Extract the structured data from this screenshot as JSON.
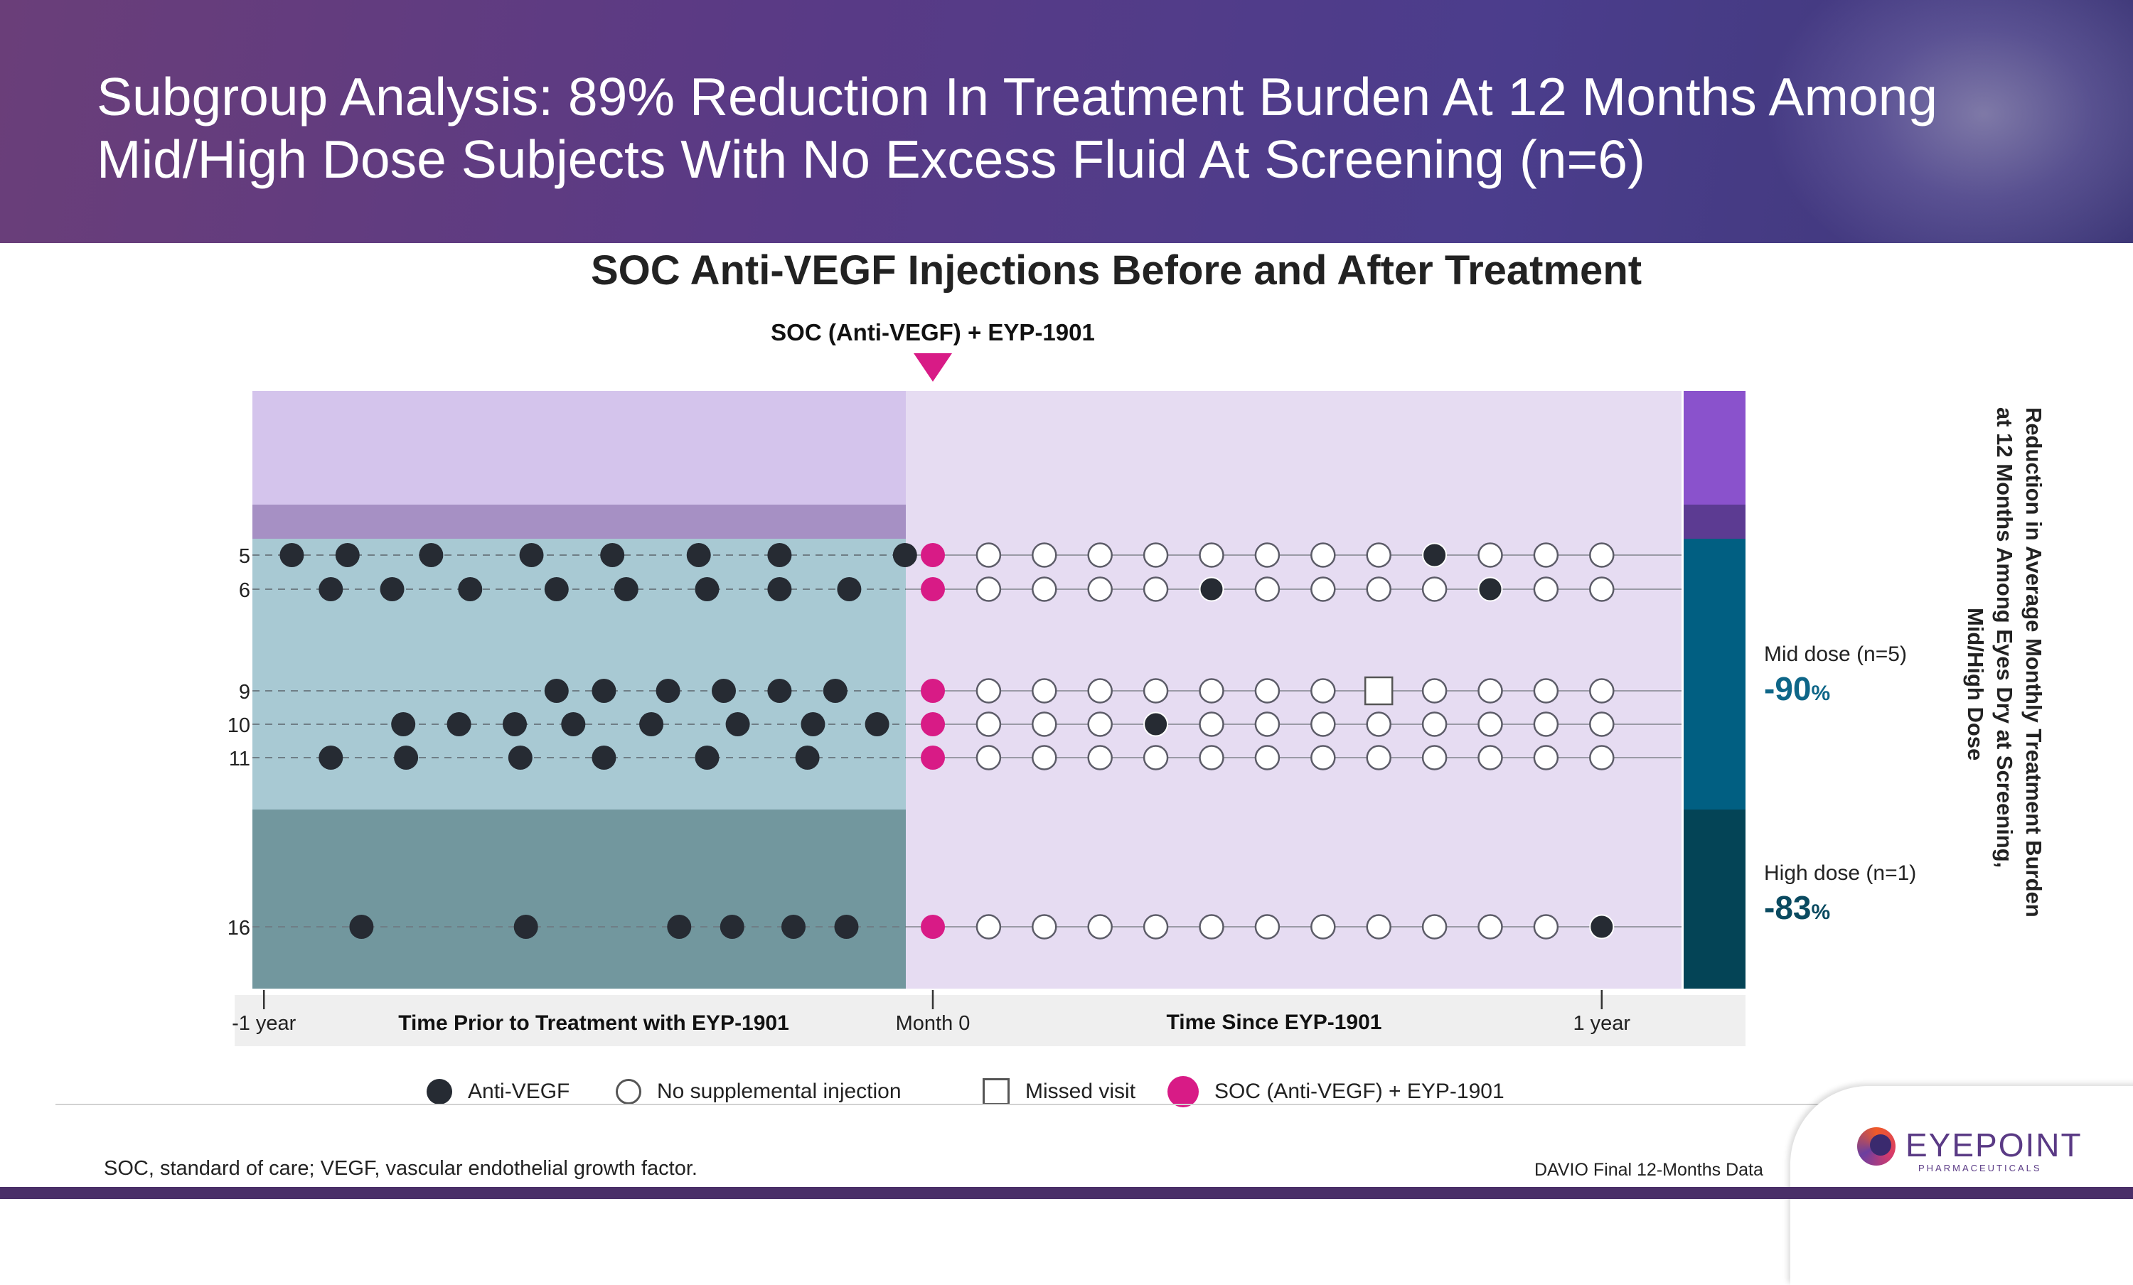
{
  "header": {
    "title": "Subgroup Analysis: 89% Reduction In Treatment Burden At 12 Months Among Mid/High Dose Subjects With No Excess Fluid At Screening (n=6)"
  },
  "chart_data": {
    "type": "scatter",
    "title": "SOC Anti-VEGF Injections Before and After Treatment",
    "marker_label": "SOC (Anti-VEGF) + EYP-1901",
    "x_unit": "months relative to EYP-1901 treatment",
    "xlim": [
      -12.5,
      13.5
    ],
    "x_ticks": [
      {
        "label": "-1 year",
        "value": -12
      },
      {
        "label": "Month 0",
        "value": 0
      },
      {
        "label": "1 year",
        "value": 12
      }
    ],
    "x_sections": {
      "before": "Time Prior to Treatment with EYP-1901",
      "after": "Time Since EYP-1901"
    },
    "subjects": [
      {
        "id": "5",
        "group": "Mid dose",
        "pre_injections": [
          -11.5,
          -10.5,
          -9.0,
          -7.2,
          -5.75,
          -4.2,
          -2.75,
          -0.5
        ],
        "post_visits": [
          "N",
          "N",
          "N",
          "N",
          "N",
          "N",
          "N",
          "N",
          "A",
          "N",
          "N",
          "N"
        ]
      },
      {
        "id": "6",
        "group": "Mid dose",
        "pre_injections": [
          -10.8,
          -9.7,
          -8.3,
          -6.75,
          -5.5,
          -4.05,
          -2.75,
          -1.5
        ],
        "post_visits": [
          "N",
          "N",
          "N",
          "N",
          "A",
          "N",
          "N",
          "N",
          "N",
          "A",
          "N",
          "N"
        ]
      },
      {
        "id": "9",
        "group": "Mid dose",
        "pre_injections": [
          -6.75,
          -5.9,
          -4.75,
          -3.75,
          -2.75,
          -1.75
        ],
        "post_visits": [
          "N",
          "N",
          "N",
          "N",
          "N",
          "N",
          "N",
          "M",
          "N",
          "N",
          "N",
          "N"
        ]
      },
      {
        "id": "10",
        "group": "Mid dose",
        "pre_injections": [
          -9.5,
          -8.5,
          -7.5,
          -6.45,
          -5.05,
          -3.5,
          -2.15,
          -1.0
        ],
        "post_visits": [
          "N",
          "N",
          "N",
          "A",
          "N",
          "N",
          "N",
          "N",
          "N",
          "N",
          "N",
          "N"
        ]
      },
      {
        "id": "11",
        "group": "Mid dose",
        "pre_injections": [
          -10.8,
          -9.45,
          -7.4,
          -5.9,
          -4.05,
          -2.25
        ],
        "post_visits": [
          "N",
          "N",
          "N",
          "N",
          "N",
          "N",
          "N",
          "N",
          "N",
          "N",
          "N",
          "N"
        ]
      },
      {
        "id": "16",
        "group": "High dose",
        "pre_injections": [
          -10.25,
          -7.3,
          -4.55,
          -3.6,
          -2.5,
          -1.55
        ],
        "post_visits": [
          "N",
          "N",
          "N",
          "N",
          "N",
          "N",
          "N",
          "N",
          "N",
          "N",
          "N",
          "A"
        ]
      }
    ],
    "visit_codes": {
      "A": "Anti-VEGF",
      "N": "No supplemental injection",
      "M": "Missed visit"
    },
    "groups": [
      {
        "name": "Mid dose (n=5)",
        "value": "-90",
        "unit": "%"
      },
      {
        "name": "High dose (n=1)",
        "value": "-83",
        "unit": "%"
      }
    ],
    "side_label": "Reduction in Average Monthly Treatment Burden at 12 Months Among Eyes Dry at Screening, Mid/High Dose",
    "legend": [
      "Anti-VEGF",
      "No supplemental injection",
      "Missed visit",
      "SOC (Anti-VEGF) + EYP-1901"
    ],
    "colors": {
      "anti_vegf": "#262b33",
      "soc_marker": "#d81b86",
      "mid_band": "#a8c9d3",
      "high_band": "#72979e",
      "pre_top": "#d4c4ec",
      "post_bg": "#e6dcf2",
      "purple_strip": "#a690c4",
      "bar_top": "#8a52cc",
      "bar_strip": "#5c3b92",
      "bar_mid": "#015f82",
      "bar_high": "#044456",
      "mid_text": "#0e6688",
      "high_text": "#0a4a60"
    }
  },
  "footer": {
    "footnote": "SOC, standard of care; VEGF, vascular endothelial growth factor.",
    "source": "DAVIO Final 12-Months Data"
  },
  "logo": {
    "word": "EYEPOINT",
    "sub": "PHARMACEUTICALS"
  }
}
